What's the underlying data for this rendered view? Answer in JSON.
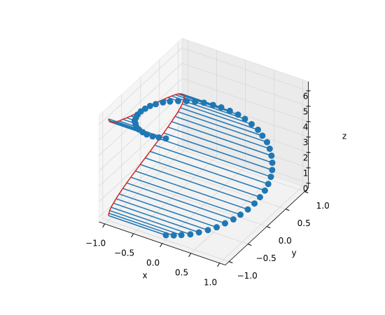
{
  "chart_data": {
    "type": "stem3d",
    "x": [
      0,
      0.13,
      0.25,
      0.38,
      0.49,
      0.6,
      0.7,
      0.78,
      0.86,
      0.91,
      0.96,
      0.99,
      1.0,
      1.0,
      0.98,
      0.94,
      0.89,
      0.82,
      0.74,
      0.65,
      0.55,
      0.43,
      0.32,
      0.19,
      0.06,
      -0.06,
      -0.19,
      -0.32,
      -0.43,
      -0.55,
      -0.65,
      -0.74,
      -0.82,
      -0.89,
      -0.94,
      -0.98,
      -1.0,
      -1.0,
      -0.99,
      -0.96,
      -0.91,
      -0.86,
      -0.78,
      -0.7,
      -0.6,
      -0.49,
      -0.38,
      -0.25,
      -0.13,
      0
    ],
    "y": [
      -1,
      -0.99,
      -0.97,
      -0.93,
      -0.87,
      -0.8,
      -0.72,
      -0.62,
      -0.52,
      -0.41,
      -0.29,
      -0.16,
      -0.03,
      0.1,
      0.22,
      0.35,
      0.46,
      0.57,
      0.67,
      0.76,
      0.84,
      0.9,
      0.95,
      0.98,
      1.0,
      1.0,
      0.98,
      0.95,
      0.9,
      0.84,
      0.76,
      0.67,
      0.57,
      0.46,
      0.35,
      0.22,
      0.1,
      -0.03,
      -0.16,
      -0.29,
      -0.41,
      -0.52,
      -0.62,
      -0.72,
      -0.8,
      -0.87,
      -0.93,
      -0.97,
      -0.99,
      -1
    ],
    "z": [
      0,
      0.13,
      0.26,
      0.38,
      0.51,
      0.64,
      0.77,
      0.9,
      1.03,
      1.15,
      1.28,
      1.41,
      1.54,
      1.67,
      1.8,
      1.92,
      2.05,
      2.18,
      2.31,
      2.44,
      2.56,
      2.69,
      2.82,
      2.95,
      3.08,
      3.21,
      3.33,
      3.46,
      3.59,
      3.72,
      3.85,
      3.97,
      4.1,
      4.23,
      4.36,
      4.49,
      4.62,
      4.74,
      4.87,
      5.0,
      5.13,
      5.26,
      5.39,
      5.51,
      5.64,
      5.77,
      5.9,
      6.03,
      6.16,
      6.28
    ],
    "bottom": -1,
    "color": "#1f77b4",
    "baseline_color": "#d62728",
    "xlabel": "x",
    "ylabel": "y",
    "zlabel": "z",
    "xlim": [
      -1.1,
      1.1
    ],
    "ylim": [
      -1.1,
      1.1
    ],
    "zlim": [
      -0.31,
      6.6
    ],
    "xticks": [
      {
        "value": -1,
        "label": "−1.0"
      },
      {
        "value": -0.5,
        "label": "−0.5"
      },
      {
        "value": 0,
        "label": "0.0"
      },
      {
        "value": 0.5,
        "label": "0.5"
      },
      {
        "value": 1,
        "label": "1.0"
      }
    ],
    "yticks": [
      {
        "value": -1,
        "label": "−1.0"
      },
      {
        "value": -0.5,
        "label": "−0.5"
      },
      {
        "value": 0,
        "label": "0.0"
      },
      {
        "value": 0.5,
        "label": "0.5"
      },
      {
        "value": 1,
        "label": "1.0"
      }
    ],
    "zticks": [
      0,
      1,
      2,
      3,
      4,
      5,
      6
    ],
    "grid": true
  }
}
